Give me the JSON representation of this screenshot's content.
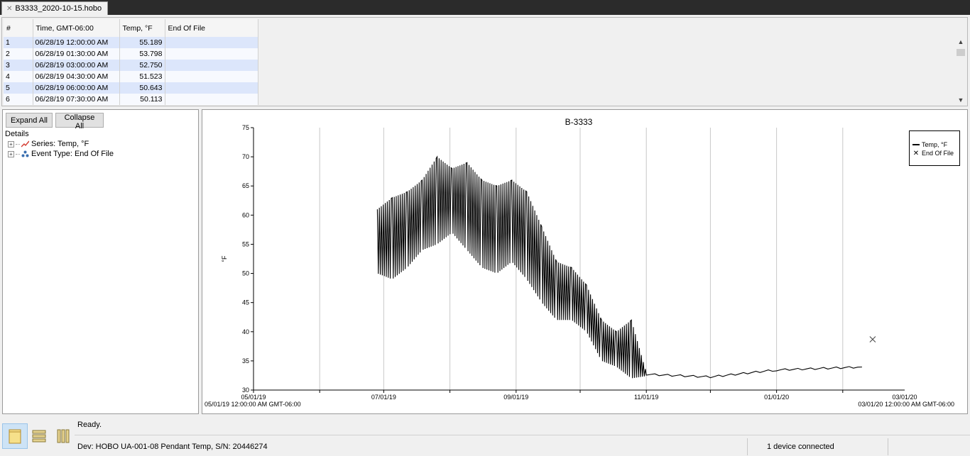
{
  "tab": {
    "title": "B3333_2020-10-15.hobo"
  },
  "table": {
    "headers": [
      "#",
      "Time, GMT-06:00",
      "Temp, °F",
      "End Of File"
    ],
    "rows": [
      [
        "1",
        "06/28/19 12:00:00 AM",
        "55.189",
        ""
      ],
      [
        "2",
        "06/28/19 01:30:00 AM",
        "53.798",
        ""
      ],
      [
        "3",
        "06/28/19 03:00:00 AM",
        "52.750",
        ""
      ],
      [
        "4",
        "06/28/19 04:30:00 AM",
        "51.523",
        ""
      ],
      [
        "5",
        "06/28/19 06:00:00 AM",
        "50.643",
        ""
      ],
      [
        "6",
        "06/28/19 07:30:00 AM",
        "50.113",
        ""
      ]
    ]
  },
  "details": {
    "expand_label": "Expand All",
    "collapse_label": "Collapse All",
    "root_label": "Details",
    "items": [
      {
        "label": "Series: Temp, °F",
        "icon": "series-line-icon"
      },
      {
        "label": "Event Type: End Of File",
        "icon": "event-type-icon"
      }
    ]
  },
  "chart_data": {
    "type": "line",
    "title": "B-3333",
    "ylabel": "°F",
    "xlabel": "",
    "ylim": [
      30,
      75
    ],
    "yticks": [
      30,
      35,
      40,
      45,
      50,
      55,
      60,
      65,
      70,
      75
    ],
    "xlim": [
      "05/01/19",
      "03/01/20"
    ],
    "xtick_labels": [
      "05/01/19",
      "07/01/19",
      "09/01/19",
      "11/01/19",
      "01/01/20",
      "03/01/20"
    ],
    "x_start_label": "05/01/19 12:00:00 AM GMT-06:00",
    "x_end_label": "03/01/20 12:00:00 AM GMT-06:00",
    "grid": "vertical",
    "legend_position": "top-right",
    "series": [
      {
        "name": "Temp, °F",
        "color": "#000000",
        "envelope": [
          {
            "x": "06/28/19",
            "low": 50,
            "high": 61
          },
          {
            "x": "07/05/19",
            "low": 49,
            "high": 63
          },
          {
            "x": "07/12/19",
            "low": 51,
            "high": 64
          },
          {
            "x": "07/19/19",
            "low": 54,
            "high": 66
          },
          {
            "x": "07/26/19",
            "low": 55,
            "high": 70
          },
          {
            "x": "08/02/19",
            "low": 57,
            "high": 68
          },
          {
            "x": "08/09/19",
            "low": 54,
            "high": 69
          },
          {
            "x": "08/16/19",
            "low": 51,
            "high": 66
          },
          {
            "x": "08/23/19",
            "low": 50,
            "high": 65
          },
          {
            "x": "08/30/19",
            "low": 52,
            "high": 66
          },
          {
            "x": "09/06/19",
            "low": 49,
            "high": 64
          },
          {
            "x": "09/13/19",
            "low": 45,
            "high": 58
          },
          {
            "x": "09/20/19",
            "low": 42,
            "high": 52
          },
          {
            "x": "09/27/19",
            "low": 42,
            "high": 51
          },
          {
            "x": "10/04/19",
            "low": 40,
            "high": 48
          },
          {
            "x": "10/11/19",
            "low": 35,
            "high": 42
          },
          {
            "x": "10/18/19",
            "low": 34,
            "high": 40
          },
          {
            "x": "10/25/19",
            "low": 32,
            "high": 42
          },
          {
            "x": "11/01/19",
            "low": 32.4,
            "high": 33
          },
          {
            "x": "12/01/19",
            "low": 31.5,
            "high": 33
          },
          {
            "x": "01/01/20",
            "low": 33.3,
            "high": 33.6
          },
          {
            "x": "02/10/20",
            "low": 33.9,
            "high": 34
          }
        ]
      },
      {
        "name": "End Of File",
        "marker": "x",
        "points": [
          {
            "x": "02/15/20",
            "y": 38.7
          }
        ]
      }
    ]
  },
  "legend": {
    "series_label": "Temp, °F",
    "event_label": "End Of File"
  },
  "status": {
    "ready": "Ready.",
    "device": "Dev: HOBO UA-001-08 Pendant Temp, S/N: 20446274",
    "connection": "1 device connected"
  }
}
